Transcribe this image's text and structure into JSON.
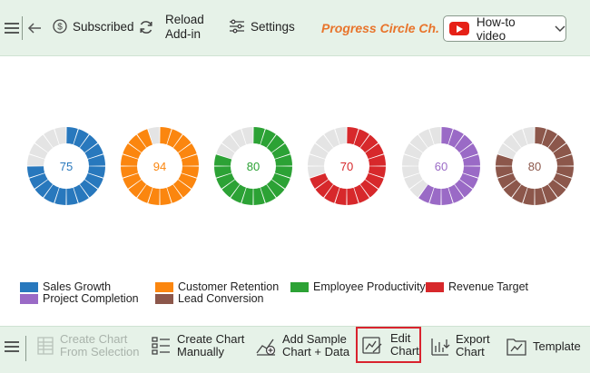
{
  "toolbar": {
    "subscribed_label": "Subscribed",
    "reload_label_line1": "Reload",
    "reload_label_line2": "Add-in",
    "settings_label": "Settings",
    "product_title": "Progress Circle Ch...",
    "howto_label": "How-to video"
  },
  "colors": {
    "toolbar_bg": "#e6f2e8",
    "accent_orange": "#e8742b",
    "youtube_red": "#e62117",
    "highlight_border": "#d9232e",
    "track_gray": "#e4e4e4"
  },
  "icons": {
    "menu": "hamburger-icon",
    "back": "arrow-left-icon",
    "subscribed": "dollar-circle-icon",
    "reload": "refresh-icon",
    "settings": "sliders-icon",
    "howto": "youtube-icon",
    "dropdown": "chevron-down-icon"
  },
  "chart_data": {
    "type": "progress-circle",
    "segments_per_ring": 20,
    "series": [
      {
        "name": "Sales Growth",
        "value": 75,
        "color": "#2878bd"
      },
      {
        "name": "Customer Retention",
        "value": 94,
        "color": "#fb860f"
      },
      {
        "name": "Employee Productivity",
        "value": 80,
        "color": "#2ca235"
      },
      {
        "name": "Revenue Target",
        "value": 70,
        "color": "#d7282b"
      },
      {
        "name": "Project Completion",
        "value": 60,
        "color": "#9a6ac6"
      },
      {
        "name": "Lead Conversion",
        "value": 80,
        "color": "#8c574b"
      }
    ],
    "legend_position": "bottom-left"
  },
  "bottombar": {
    "create_from_selection_line1": "Create Chart",
    "create_from_selection_line2": "From Selection",
    "create_manually_line1": "Create Chart",
    "create_manually_line2": "Manually",
    "add_sample_line1": "Add Sample",
    "add_sample_line2": "Chart + Data",
    "edit_chart_line1": "Edit",
    "edit_chart_line2": "Chart",
    "export_chart_line1": "Export",
    "export_chart_line2": "Chart",
    "template_label": "Template"
  }
}
